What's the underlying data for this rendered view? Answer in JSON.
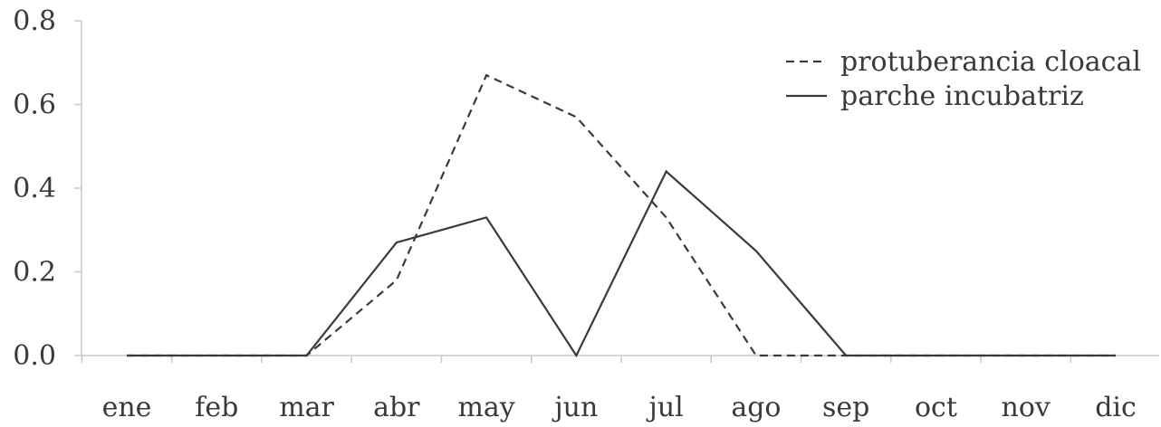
{
  "chart_data": {
    "type": "line",
    "title": "",
    "xlabel": "",
    "ylabel": "",
    "categories": [
      "ene",
      "feb",
      "mar",
      "abr",
      "may",
      "jun",
      "jul",
      "ago",
      "sep",
      "oct",
      "nov",
      "dic"
    ],
    "ylim": [
      0,
      0.8
    ],
    "yticks": [
      "0.0",
      "0.2",
      "0.4",
      "0.6",
      "0.8"
    ],
    "grid": false,
    "legend_position": "top-right",
    "series": [
      {
        "name": "protuberancia cloacal",
        "style": "dashed",
        "color": "#3a3a3a",
        "values": [
          0,
          0,
          0,
          0.18,
          0.67,
          0.57,
          0.33,
          0,
          0,
          0,
          0,
          0
        ]
      },
      {
        "name": "parche incubatriz",
        "style": "solid",
        "color": "#3a3a3a",
        "values": [
          0,
          0,
          0,
          0.27,
          0.33,
          0,
          0.44,
          0.25,
          0,
          0,
          0,
          0
        ]
      }
    ]
  }
}
